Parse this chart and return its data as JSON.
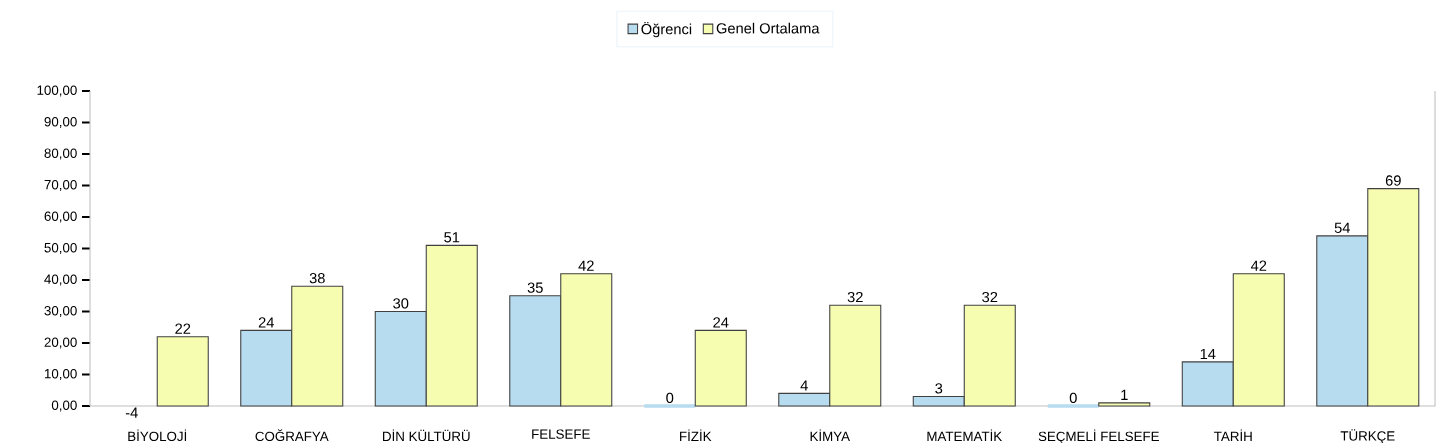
{
  "chart_data": {
    "type": "bar",
    "categories": [
      "BİYOLOJİ",
      "COĞRAFYA",
      "DİN KÜLTÜRÜ",
      "FELSEFE",
      "FİZİK",
      "KİMYA",
      "MATEMATİK",
      "SEÇMELİ FELSEFE",
      "TARİH",
      "TÜRKÇE"
    ],
    "series": [
      {
        "name": "Öğrenci",
        "color": "#b7dcf0",
        "values": [
          null,
          24,
          30,
          35,
          0,
          4,
          3,
          0,
          14,
          54
        ]
      },
      {
        "name": "Genel Ortalama",
        "color": "#f6fcb0",
        "values": [
          22,
          38,
          51,
          42,
          24,
          32,
          32,
          1,
          42,
          69
        ]
      }
    ],
    "ylim": [
      0,
      100
    ],
    "yticks": [
      {
        "value": 0,
        "label": "0,00"
      },
      {
        "value": 10,
        "label": "10,00"
      },
      {
        "value": 20,
        "label": "20,00"
      },
      {
        "value": 30,
        "label": "30,00"
      },
      {
        "value": 40,
        "label": "40,00"
      },
      {
        "value": 50,
        "label": "50,00"
      },
      {
        "value": 60,
        "label": "60,00"
      },
      {
        "value": 70,
        "label": "70,00"
      },
      {
        "value": 80,
        "label": "80,00"
      },
      {
        "value": 90,
        "label": "90,00"
      },
      {
        "value": 100,
        "label": "100,00"
      }
    ],
    "data_labels": true,
    "legend": "top",
    "annotations": [
      "-4"
    ]
  }
}
